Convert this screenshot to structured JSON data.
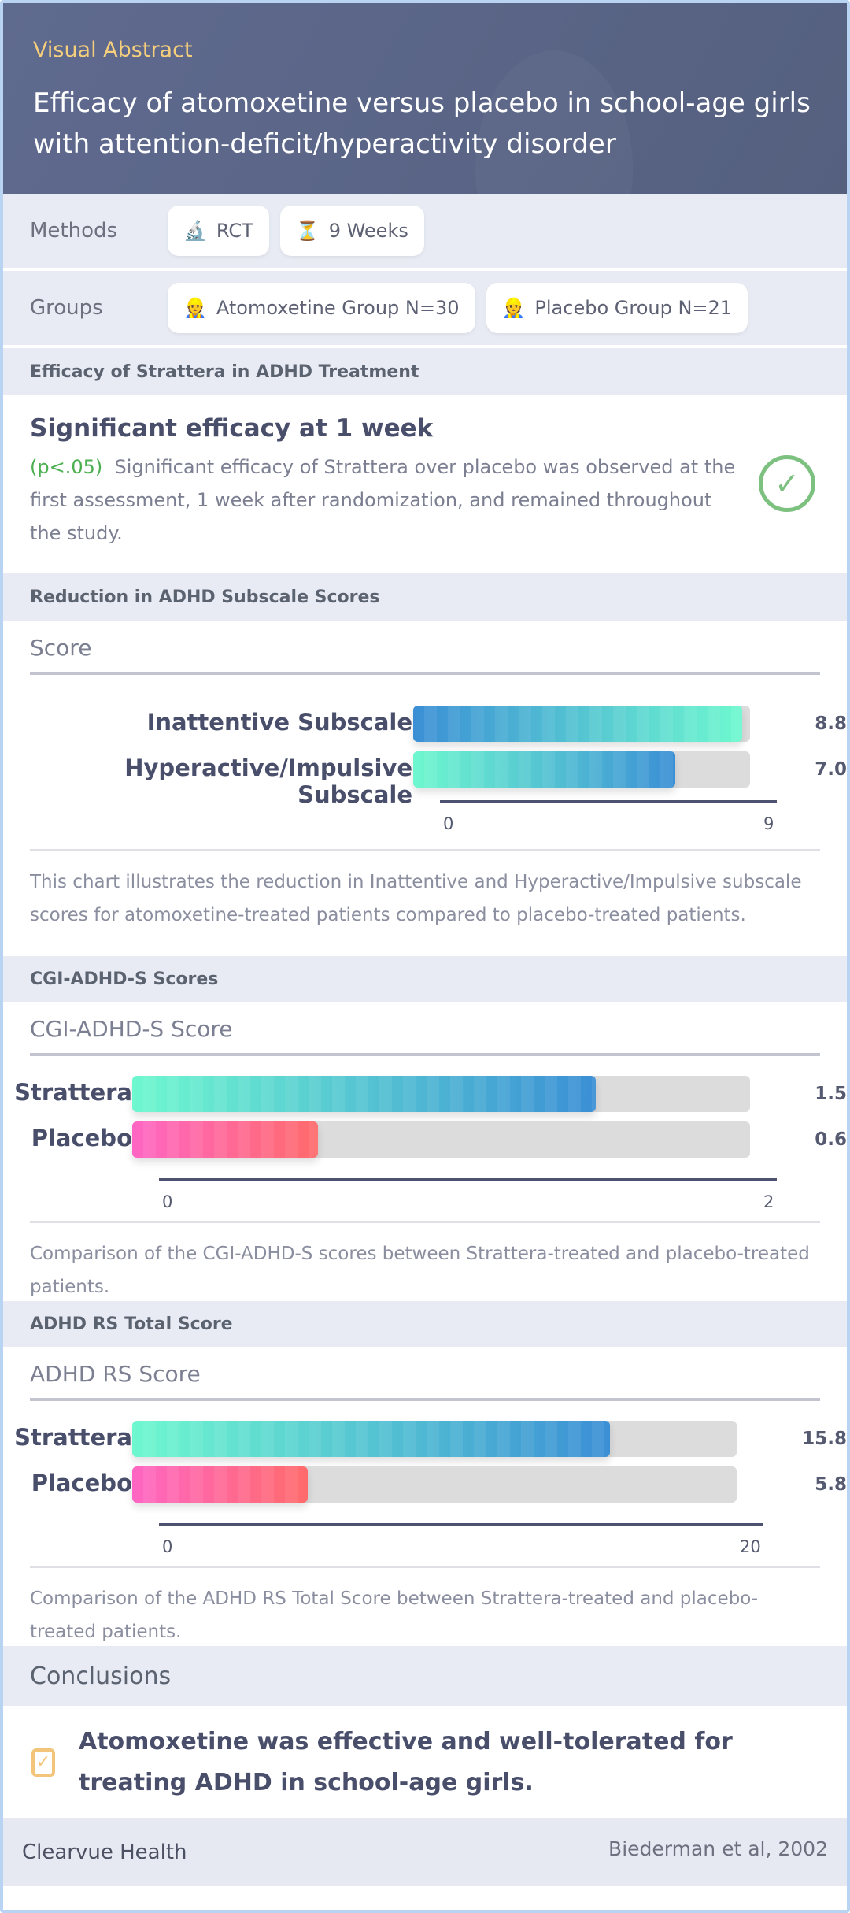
{
  "header": {
    "kicker": "Visual Abstract",
    "title": "Efficacy of atomoxetine versus placebo in school-age girls with attention-deficit/hyperactivity disorder"
  },
  "methods": {
    "label": "Methods",
    "chips": [
      {
        "icon": "microscope-icon",
        "glyph": "🔬",
        "text": "RCT"
      },
      {
        "icon": "hourglass-icon",
        "glyph": "⏳",
        "text": "9 Weeks"
      }
    ]
  },
  "groups": {
    "label": "Groups",
    "chips": [
      {
        "icon": "person-icon",
        "glyph": "👷",
        "text": "Atomoxetine Group N=30"
      },
      {
        "icon": "person-icon",
        "glyph": "👷",
        "text": "Placebo Group N=21"
      }
    ]
  },
  "efficacy": {
    "section": "Efficacy of Strattera in ADHD Treatment",
    "heading": "Significant efficacy at 1 week",
    "pvalue": "(p<.05)",
    "text": "Significant efficacy of Strattera over placebo was observed at the first assessment, 1 week after randomization, and remained throughout the study.",
    "icon": "check-circle-icon",
    "icon_color": "#7cc17f"
  },
  "charts": [
    {
      "section": "Reduction in ADHD Subscale Scores",
      "title": "Score",
      "max": 9,
      "ticks": [
        "0",
        "9"
      ],
      "bars": [
        {
          "label": "Inattentive Subscale",
          "value": 8.8,
          "display": "8.8",
          "gradient": [
            "#3b8fd5",
            "#6ef8cf"
          ]
        },
        {
          "label": "Hyperactive/Impulsive Subscale",
          "value": 7.0,
          "display": "7.0",
          "gradient": [
            "#6ef8cf",
            "#3b8fd5"
          ]
        }
      ],
      "description": "This chart illustrates the reduction in Inattentive and Hyperactive/Impulsive subscale scores for atomoxetine-treated patients compared to placebo-treated patients."
    },
    {
      "section": "CGI-ADHD-S Scores",
      "title": "CGI-ADHD-S Score",
      "max": 2,
      "ticks": [
        "0",
        "2"
      ],
      "bars": [
        {
          "label": "Strattera",
          "value": 1.5,
          "display": "1.5",
          "gradient": [
            "#6ef8cf",
            "#3b8fd5"
          ]
        },
        {
          "label": "Placebo",
          "value": 0.6,
          "display": "0.6",
          "gradient": [
            "#ff66c4",
            "#ff6b6b"
          ]
        }
      ],
      "description": "Comparison of the CGI-ADHD-S scores between Strattera-treated and placebo-treated patients."
    },
    {
      "section": "ADHD RS Total Score",
      "title": "ADHD RS Score",
      "max": 20,
      "ticks": [
        "0",
        "20"
      ],
      "bars": [
        {
          "label": "Strattera",
          "value": 15.8,
          "display": "15.8",
          "gradient": [
            "#6ef8cf",
            "#3b8fd5"
          ]
        },
        {
          "label": "Placebo",
          "value": 5.8,
          "display": "5.8",
          "gradient": [
            "#ff66c4",
            "#ff6b6b"
          ]
        }
      ],
      "description": "Comparison of the ADHD RS Total Score between Strattera-treated and placebo-treated patients."
    }
  ],
  "conclusions": {
    "heading": "Conclusions",
    "icon": "checkbox-icon",
    "text": "Atomoxetine was effective and well-tolerated for treating ADHD in school-age girls."
  },
  "footer": {
    "brand": "Clearvue Health",
    "citation": "Biederman et al, 2002"
  }
}
